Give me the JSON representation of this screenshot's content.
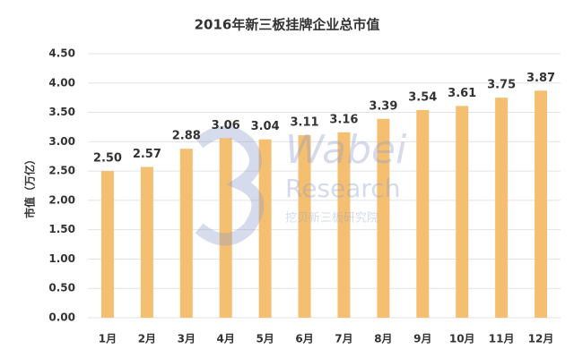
{
  "chart_data": {
    "type": "bar",
    "title": "2016年新三板挂牌企业总市值",
    "y_label": "市值（万亿）",
    "categories": [
      "1月",
      "2月",
      "3月",
      "4月",
      "5月",
      "6月",
      "7月",
      "8月",
      "9月",
      "10月",
      "11月",
      "12月"
    ],
    "values": [
      2.5,
      2.57,
      2.88,
      3.06,
      3.04,
      3.11,
      3.16,
      3.39,
      3.54,
      3.61,
      3.75,
      3.87
    ],
    "value_labels": [
      "2.50",
      "2.57",
      "2.88",
      "3.06",
      "3.04",
      "3.11",
      "3.16",
      "3.39",
      "3.54",
      "3.61",
      "3.75",
      "3.87"
    ],
    "color": "#f5bf72",
    "ylim": [
      0,
      4.5
    ],
    "yticks": [
      {
        "value": 0,
        "label": "0.00"
      },
      {
        "value": 0.5,
        "label": "0.50"
      },
      {
        "value": 1,
        "label": "1.00"
      },
      {
        "value": 1.5,
        "label": "1.50"
      },
      {
        "value": 2,
        "label": "2.00"
      },
      {
        "value": 2.5,
        "label": "2.50"
      },
      {
        "value": 3,
        "label": "3.00"
      },
      {
        "value": 3.5,
        "label": "3.50"
      },
      {
        "value": 4,
        "label": "4.00"
      },
      {
        "value": 4.5,
        "label": "4.50"
      }
    ],
    "grid": true,
    "watermark": [
      "Wabei",
      "Research",
      "挖贝新三板研究院"
    ]
  }
}
